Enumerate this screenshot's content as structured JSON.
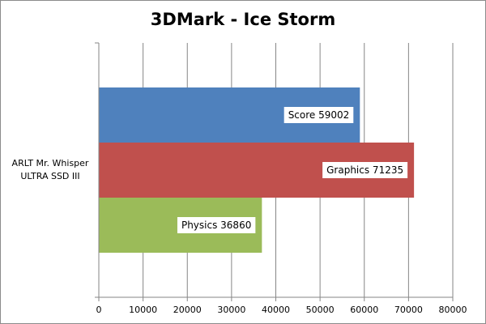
{
  "chart_data": {
    "type": "bar",
    "orientation": "horizontal",
    "title": "3DMark - Ice Storm",
    "categories": [
      "ARLT Mr. Whisper ULTRA SSD III"
    ],
    "category_lines": [
      "ARLT Mr. Whisper",
      "ULTRA SSD III"
    ],
    "series": [
      {
        "name": "Score",
        "label": "Score 59002",
        "values": [
          59002
        ],
        "color": "#4f81bd"
      },
      {
        "name": "Graphics",
        "label": "Graphics 71235",
        "values": [
          71235
        ],
        "color": "#c0504d"
      },
      {
        "name": "Physics",
        "label": "Physics 36860",
        "values": [
          36860
        ],
        "color": "#9bbb59"
      }
    ],
    "xlim": [
      0,
      80000
    ],
    "x_ticks": [
      0,
      10000,
      20000,
      30000,
      40000,
      50000,
      60000,
      70000,
      80000
    ],
    "x_tick_labels": [
      "0",
      "10000",
      "20000",
      "30000",
      "40000",
      "50000",
      "60000",
      "70000",
      "80000"
    ],
    "grid": true,
    "legend": "none"
  }
}
